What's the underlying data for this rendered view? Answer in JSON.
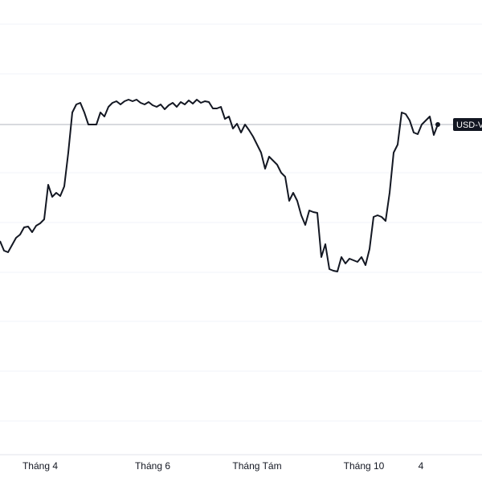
{
  "chart_data": {
    "type": "line",
    "series": [
      {
        "name": "USD-V",
        "color": "#131722",
        "values": [
          300,
          288,
          286,
          295,
          304,
          308,
          317,
          318,
          311,
          319,
          322,
          327,
          370,
          355,
          360,
          356,
          368,
          410,
          460,
          470,
          472,
          460,
          445,
          445,
          445,
          460,
          455,
          467,
          472,
          474,
          470,
          474,
          476,
          474,
          476,
          472,
          470,
          473,
          469,
          467,
          470,
          464,
          469,
          472,
          467,
          473,
          470,
          475,
          471,
          476,
          472,
          474,
          473,
          465,
          465,
          467,
          452,
          455,
          440,
          446,
          435,
          445,
          438,
          430,
          420,
          410,
          390,
          405,
          400,
          395,
          385,
          380,
          350,
          360,
          350,
          332,
          320,
          338,
          336,
          335,
          280,
          296,
          265,
          263,
          262,
          280,
          272,
          278,
          276,
          274,
          280,
          270,
          290,
          330,
          332,
          330,
          325,
          360,
          410,
          420,
          460,
          458,
          450,
          435,
          433,
          445,
          450,
          455,
          432,
          445
        ]
      }
    ],
    "xticks": [
      {
        "value": 10,
        "label": "Tháng 4"
      },
      {
        "value": 38,
        "label": "Tháng 6"
      },
      {
        "value": 64,
        "label": "Tháng Tám"
      },
      {
        "value": 90.6,
        "label": "Tháng 10"
      },
      {
        "value": 104.8,
        "label": "4"
      }
    ],
    "ylim": [
      0,
      600
    ]
  }
}
